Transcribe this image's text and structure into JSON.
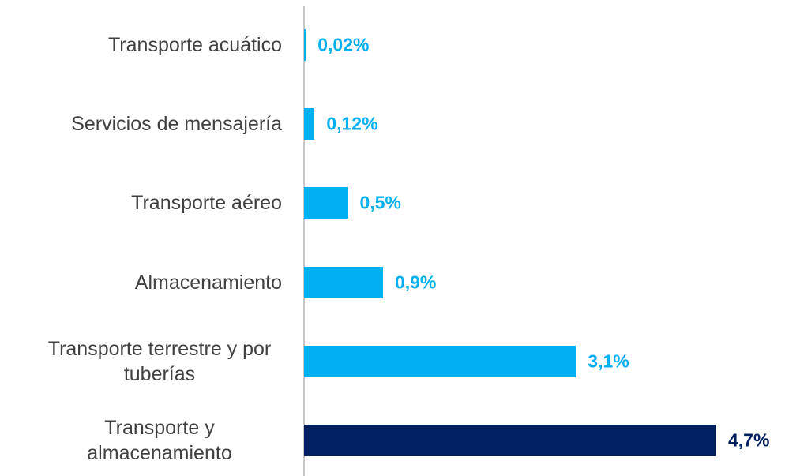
{
  "chart_data": {
    "type": "bar",
    "orientation": "horizontal",
    "categories": [
      "Transporte acuático",
      "Servicios de mensajería",
      "Transporte aéreo",
      "Almacenamiento",
      "Transporte terrestre y por tuberías",
      "Transporte y almacenamiento"
    ],
    "values": [
      0.02,
      0.12,
      0.5,
      0.9,
      3.1,
      4.7
    ],
    "value_labels": [
      "0,02%",
      "0,12%",
      "0,5%",
      "0,9%",
      "3,1%",
      "4,7%"
    ],
    "colors": [
      "#00b0f0",
      "#00b0f0",
      "#00b0f0",
      "#00b0f0",
      "#00b0f0",
      "#002060"
    ]
  }
}
